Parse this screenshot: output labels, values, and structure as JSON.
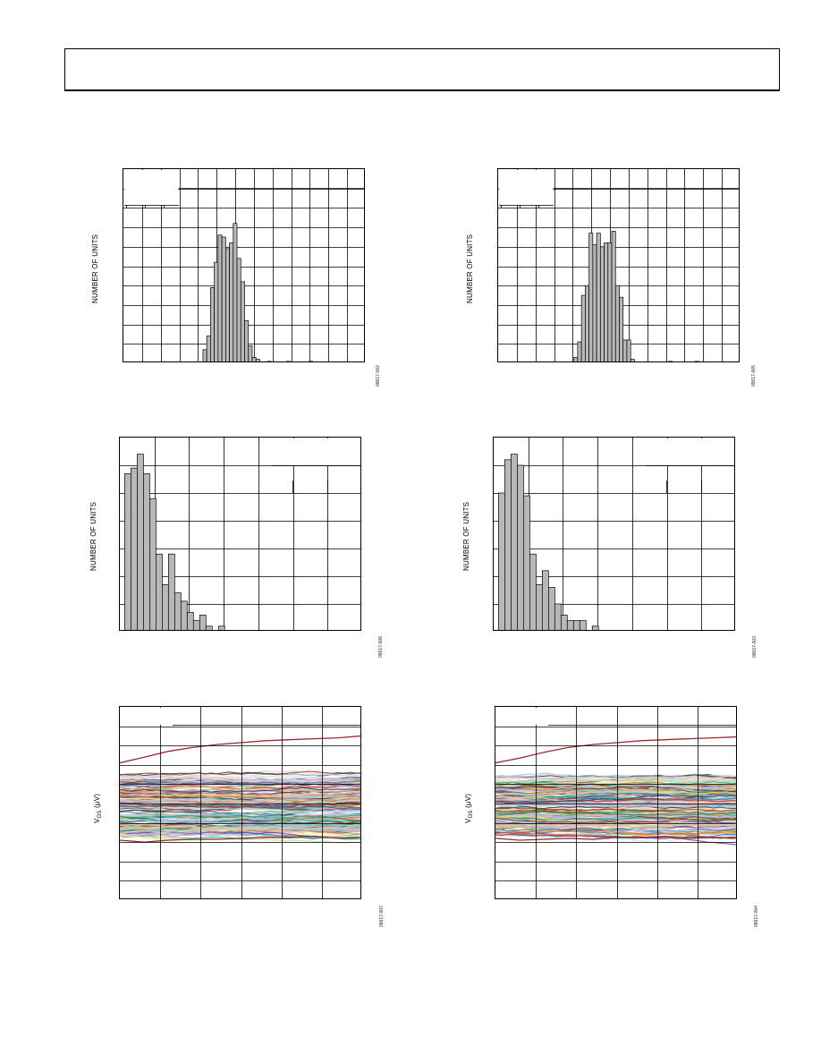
{
  "header": {
    "title": ""
  },
  "labels": {
    "y_histogram": "NUMBER OF UNITS",
    "y_vos_prefix": "V",
    "y_vos_sub": "OS",
    "y_vos_suffix": " (µV)"
  },
  "figure_ids": [
    "09617-002",
    "09617-005",
    "09617-006",
    "09617-003",
    "09617-007",
    "09617-004"
  ],
  "chart_data": [
    {
      "type": "bar",
      "panel": "histogram-1",
      "ylabel": "NUMBER OF UNITS",
      "bar_color": "#b8b8b8",
      "bins": 64,
      "ylim": [
        0,
        100
      ],
      "values": [
        0,
        0,
        0,
        0,
        0,
        0,
        0,
        0,
        0,
        0,
        0,
        0,
        0,
        0,
        0,
        0,
        0,
        0,
        0,
        0,
        0,
        7,
        14,
        39,
        52,
        66,
        65,
        59,
        62,
        72,
        54,
        42,
        22,
        9,
        3,
        2,
        0,
        0,
        1,
        0,
        0,
        0,
        0,
        1,
        0,
        0,
        0,
        0,
        0,
        1,
        0,
        0,
        0,
        0,
        0,
        0,
        0,
        0,
        0,
        0,
        0,
        0,
        0,
        0
      ]
    },
    {
      "type": "bar",
      "panel": "histogram-2",
      "ylabel": "NUMBER OF UNITS",
      "bar_color": "#b8b8b8",
      "bins": 64,
      "ylim": [
        0,
        100
      ],
      "values": [
        0,
        0,
        0,
        0,
        0,
        0,
        0,
        0,
        0,
        0,
        0,
        0,
        0,
        0,
        0,
        0,
        0,
        0,
        0,
        0,
        3,
        11,
        35,
        40,
        67,
        61,
        67,
        60,
        62,
        62,
        68,
        40,
        34,
        12,
        12,
        2,
        0,
        0,
        0,
        0,
        0,
        0,
        0,
        0,
        0,
        1,
        0,
        0,
        0,
        0,
        0,
        0,
        1,
        0,
        0,
        0,
        0,
        0,
        0,
        0,
        0,
        0,
        0,
        0
      ]
    },
    {
      "type": "bar",
      "panel": "histogram-3",
      "ylabel": "NUMBER OF UNITS",
      "bar_color": "#b8b8b8",
      "bins": 38,
      "ylim": [
        0,
        70
      ],
      "values": [
        57,
        59,
        64,
        57,
        48,
        28,
        17,
        28,
        14,
        11,
        7,
        4,
        6,
        2,
        0,
        2,
        0,
        0,
        0,
        0,
        0,
        0,
        0,
        0,
        0,
        0,
        0,
        0,
        0,
        0,
        0,
        0,
        0,
        0,
        0,
        0,
        0,
        0
      ]
    },
    {
      "type": "bar",
      "panel": "histogram-4",
      "ylabel": "NUMBER OF UNITS",
      "bar_color": "#b8b8b8",
      "bins": 38,
      "ylim": [
        0,
        70
      ],
      "values": [
        50,
        62,
        64,
        60,
        49,
        28,
        17,
        22,
        16,
        10,
        6,
        4,
        4,
        4,
        0,
        2,
        0,
        0,
        0,
        0,
        0,
        0,
        0,
        0,
        0,
        0,
        0,
        0,
        0,
        0,
        0,
        0,
        0,
        0,
        0,
        0,
        0,
        0
      ]
    },
    {
      "type": "line",
      "panel": "drift-1",
      "ylabel": "V OS (µV)",
      "series_count": 160,
      "ylim": [
        -100,
        100
      ],
      "band": [
        -32,
        28
      ],
      "outlier_top": [
        42,
        48,
        54,
        58,
        61,
        63,
        65,
        66,
        67,
        68,
        70
      ],
      "outlier_bottom": [
        -38,
        -40,
        -38,
        -37,
        -37,
        -36,
        -35,
        -35,
        -34,
        -36,
        -35
      ],
      "colors": [
        "#e8a7a7",
        "#f2c28f",
        "#9fc7e8",
        "#b9a7d8",
        "#9fd1a9",
        "#f5e08f",
        "#cfe3f3",
        "#e8c7dd",
        "#c9d99b",
        "#f4b8b8",
        "#a9b9e0",
        "#bcd7c9",
        "#3a78c4",
        "#c0392b",
        "#2e8b57",
        "#7d3c98",
        "#e67e22",
        "#34495e",
        "#1abc9c",
        "#8b4513"
      ],
      "outlier_color": "#9b2a2a"
    },
    {
      "type": "line",
      "panel": "drift-2",
      "ylabel": "V OS (µV)",
      "series_count": 160,
      "ylim": [
        -100,
        100
      ],
      "band": [
        -32,
        28
      ],
      "outlier_top": [
        42,
        47,
        53,
        58,
        61,
        63,
        65,
        66,
        67,
        68,
        69
      ],
      "outlier_bottom": [
        -36,
        -38,
        -37,
        -36,
        -37,
        -35,
        -35,
        -34,
        -36,
        -35,
        -36
      ],
      "colors": [
        "#e8a7a7",
        "#f2c28f",
        "#9fc7e8",
        "#b9a7d8",
        "#9fd1a9",
        "#f5e08f",
        "#cfe3f3",
        "#e8c7dd",
        "#c9d99b",
        "#f4b8b8",
        "#a9b9e0",
        "#bcd7c9",
        "#3a78c4",
        "#c0392b",
        "#2e8b57",
        "#7d3c98",
        "#e67e22",
        "#34495e",
        "#1abc9c",
        "#8b4513"
      ],
      "outlier_color": "#9b2a2a"
    }
  ]
}
